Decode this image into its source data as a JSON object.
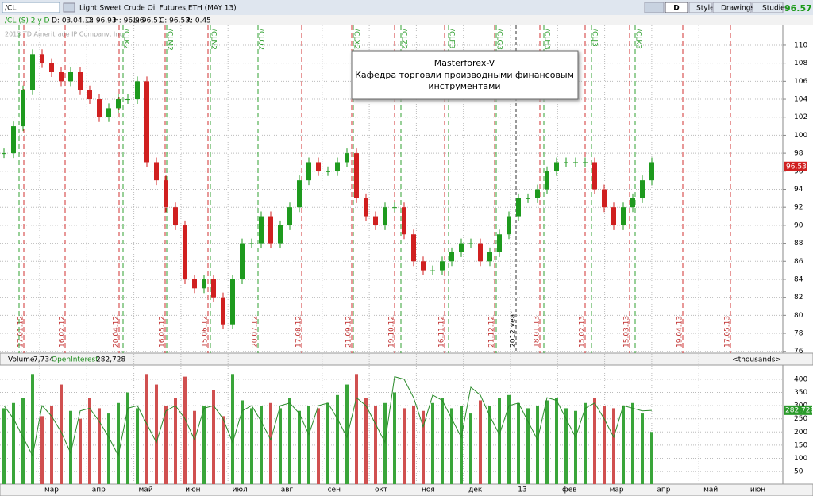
{
  "toolbar": {
    "symbol": "/CL",
    "instrument": "Light Sweet Crude Oil Futures,ETH (MAY 13)",
    "period_button": "D",
    "style": "Style",
    "drawings": "Drawings",
    "studies": "Studies",
    "last_price": "96.57"
  },
  "info_bar": {
    "chart_name": "/CL (S) 2 y D",
    "date": "D: 03.04.13",
    "open": "O: 96.93",
    "high": "H: 96.96",
    "low": "L: 96.51",
    "close": "C: 96.53",
    "range": "R: 0.45"
  },
  "watermark": "2013 TD Ameritrade IP Company, Inc.",
  "annotation": {
    "title": "Masterforex-V",
    "line1": "Кафедра торговли производными финансовым",
    "line2": "инструментами"
  },
  "price_panel": {
    "ylim": [
      75.8,
      112.2
    ],
    "yticks": [
      76,
      78,
      80,
      82,
      84,
      86,
      88,
      90,
      92,
      94,
      96,
      98,
      100,
      102,
      104,
      106,
      108,
      110
    ],
    "current_price_label": {
      "value": 96.53,
      "label": "96.53"
    },
    "closes": [
      98,
      101,
      105,
      109,
      108,
      107,
      106,
      107,
      105,
      104,
      102,
      103,
      104,
      104,
      106,
      97,
      95,
      92,
      90,
      84,
      83,
      84,
      82,
      79,
      84,
      88,
      88,
      91,
      88,
      90,
      92,
      95,
      97,
      96,
      96,
      97,
      98,
      93,
      91,
      90,
      92,
      92,
      89,
      86,
      85,
      85,
      86,
      87,
      88,
      88,
      86,
      87,
      89,
      91,
      93,
      93,
      94,
      96,
      97,
      97,
      97,
      97,
      94,
      92,
      90,
      92,
      93,
      95,
      97
    ],
    "expiry_labels": [
      "17.01.12",
      "16.02.12",
      "20.04.12",
      "16.05.12",
      "15.06.12",
      "20.07.12",
      "17.08.12",
      "21.09.12",
      "19.10.12",
      "16.11.12",
      "21.12.12",
      "18.01.13",
      "15.02.13",
      "15.03.13",
      "19.04.13",
      "17.05.13"
    ],
    "contract_labels": [
      "/CLK2",
      "/CLM2",
      "/CLN2",
      "/CLQ2",
      "/CLX2",
      "/CLZ2",
      "/CLF3",
      "/CLG3",
      "/CLH3",
      "/CLJ3",
      "/CLK3"
    ],
    "year_label": "2012 year"
  },
  "volume_panel": {
    "title": "Volume",
    "volume_last": "7,734",
    "oi_title": "OpenInterest",
    "oi_last": "282,728",
    "units": "<thousands>",
    "ylim": [
      2,
      454
    ],
    "yticks": [
      50,
      100,
      150,
      200,
      250,
      300,
      350,
      400
    ],
    "oi_label": {
      "value": 282.728,
      "label": "282,728"
    },
    "volume": [
      290,
      310,
      330,
      420,
      260,
      300,
      380,
      280,
      250,
      330,
      290,
      270,
      310,
      350,
      290,
      420,
      380,
      300,
      330,
      410,
      280,
      300,
      360,
      260,
      420,
      320,
      290,
      300,
      310,
      290,
      330,
      280,
      300,
      290,
      310,
      340,
      380,
      420,
      330,
      300,
      310,
      350,
      290,
      300,
      280,
      310,
      330,
      290,
      300,
      270,
      320,
      300,
      330,
      340,
      310,
      290,
      300,
      320,
      330,
      290,
      280,
      310,
      330,
      300,
      290,
      300,
      310,
      270,
      200
    ],
    "open_interest": [
      300,
      250,
      180,
      110,
      300,
      260,
      200,
      120,
      280,
      290,
      240,
      180,
      110,
      290,
      300,
      230,
      160,
      280,
      300,
      250,
      170,
      290,
      300,
      250,
      160,
      280,
      300,
      240,
      170,
      300,
      310,
      270,
      190,
      300,
      310,
      250,
      180,
      330,
      300,
      230,
      160,
      410,
      400,
      330,
      220,
      340,
      320,
      250,
      180,
      370,
      340,
      260,
      190,
      300,
      310,
      240,
      170,
      330,
      320,
      250,
      180,
      290,
      310,
      250,
      180,
      300,
      290,
      280,
      282
    ]
  },
  "x_axis": {
    "months": [
      "мар",
      "апр",
      "май",
      "июн",
      "июл",
      "авг",
      "сен",
      "окт",
      "ноя",
      "дек",
      "13",
      "фев",
      "мар",
      "апр",
      "май",
      "июн"
    ]
  }
}
